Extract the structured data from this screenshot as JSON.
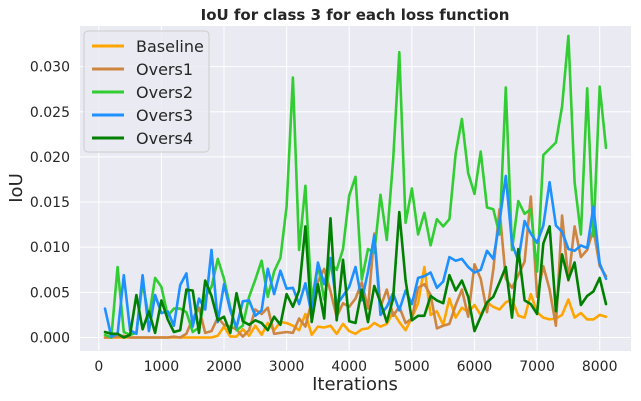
{
  "chart_data": {
    "type": "line",
    "title": "IoU for class 3 for each loss function",
    "xlabel": "Iterations",
    "ylabel": "IoU",
    "xlim": [
      -300,
      8500
    ],
    "ylim": [
      -0.0015,
      0.0345
    ],
    "xticks": [
      0,
      1000,
      2000,
      3000,
      4000,
      5000,
      6000,
      7000,
      8000
    ],
    "xtick_labels": [
      "0",
      "1000",
      "2000",
      "3000",
      "4000",
      "5000",
      "6000",
      "7000",
      "8000"
    ],
    "yticks": [
      0,
      0.005,
      0.01,
      0.015,
      0.02,
      0.025,
      0.03
    ],
    "ytick_labels": [
      "0.000",
      "0.005",
      "0.010",
      "0.015",
      "0.020",
      "0.025",
      "0.030"
    ],
    "grid": true,
    "legend_position": "top-left",
    "background": "#eaeaf2",
    "x": [
      100,
      200,
      300,
      400,
      500,
      600,
      700,
      800,
      900,
      1000,
      1100,
      1200,
      1300,
      1400,
      1500,
      1600,
      1700,
      1800,
      1900,
      2000,
      2100,
      2200,
      2300,
      2400,
      2500,
      2600,
      2700,
      2800,
      2900,
      3000,
      3100,
      3200,
      3300,
      3400,
      3500,
      3600,
      3700,
      3800,
      3900,
      4000,
      4100,
      4200,
      4300,
      4400,
      4500,
      4600,
      4700,
      4800,
      4900,
      5000,
      5100,
      5200,
      5300,
      5400,
      5500,
      5600,
      5700,
      5800,
      5900,
      6000,
      6100,
      6200,
      6300,
      6400,
      6500,
      6600,
      6700,
      6800,
      6900,
      7000,
      7100,
      7200,
      7300,
      7400,
      7500,
      7600,
      7700,
      7800,
      7900,
      8000,
      8100
    ],
    "series": [
      {
        "name": "Baseline",
        "color": "#ffa500",
        "values": [
          0,
          0,
          0,
          0,
          0,
          0,
          0,
          0,
          0,
          0,
          0,
          0,
          0,
          0,
          0,
          0,
          0,
          0,
          0.0002,
          0.0012,
          0.0001,
          0.0001,
          0.0009,
          0.0002,
          0.0013,
          0.0003,
          0.0016,
          0.0008,
          0.0017,
          0.0016,
          0.0013,
          0.0008,
          0.0026,
          0.0003,
          0.0012,
          0.0011,
          0.0013,
          0.0004,
          0.0015,
          0.0007,
          0.0004,
          0.0009,
          0.001,
          0.0016,
          0.0012,
          0.0015,
          0.0028,
          0.0017,
          0.0008,
          0.0022,
          0.0038,
          0.0078,
          0.0025,
          0.0029,
          0.0014,
          0.0043,
          0.0022,
          0.0033,
          0.0028,
          0.0036,
          0.0025,
          0.0039,
          0.0034,
          0.0031,
          0.0039,
          0.0042,
          0.0024,
          0.0022,
          0.0048,
          0.0028,
          0.0022,
          0.002,
          0.0021,
          0.0025,
          0.0042,
          0.0022,
          0.0027,
          0.002,
          0.002,
          0.0025,
          0.0023
        ]
      },
      {
        "name": "Overs1",
        "color": "#cd853f",
        "values": [
          0,
          0,
          0.0001,
          0.0002,
          0,
          0,
          0,
          0,
          0,
          0,
          0,
          0.0001,
          0,
          0.0004,
          0.0021,
          0.0033,
          0.0005,
          0.0007,
          0.0022,
          0.0014,
          0.0012,
          0.0009,
          0.0001,
          0.0008,
          0.0031,
          0.0026,
          0.0033,
          0.0004,
          0.0005,
          0.0006,
          0.0005,
          0.0021,
          0.0012,
          0.004,
          0.0062,
          0.0076,
          0.0051,
          0.0023,
          0.0038,
          0.0034,
          0.0043,
          0.0061,
          0.0032,
          0.0115,
          0.0034,
          0.0053,
          0.0024,
          0.0034,
          0.0016,
          0.0021,
          0.0055,
          0.0059,
          0.0047,
          0.001,
          0.0013,
          0.0015,
          0.0036,
          0.0053,
          0.0023,
          0.0081,
          0.0065,
          0.0028,
          0.0075,
          0.0142,
          0.0065,
          0.0055,
          0.0069,
          0.0084,
          0.0156,
          0.0045,
          0.0079,
          0.0053,
          0.0013,
          0.0135,
          0.0063,
          0.0123,
          0.0089,
          0.0097,
          0.012,
          0.0079,
          0.0068
        ]
      },
      {
        "name": "Overs2",
        "color": "#32cd32",
        "values": [
          0.0003,
          0,
          0.0078,
          0.0006,
          0.0003,
          0.0005,
          0.0061,
          0.0022,
          0.0066,
          0.0056,
          0.0024,
          0.0032,
          0.0032,
          0.0028,
          0.0006,
          0.0011,
          0.0045,
          0.0056,
          0.0087,
          0.0065,
          0.0033,
          0.0008,
          0.0013,
          0.0045,
          0.0064,
          0.0085,
          0.0045,
          0.0073,
          0.0088,
          0.0145,
          0.0288,
          0.0097,
          0.0168,
          0.004,
          0.0081,
          0.0042,
          0.0082,
          0.0075,
          0.0098,
          0.0157,
          0.0178,
          0.0064,
          0.0098,
          0.0094,
          0.0158,
          0.0108,
          0.0196,
          0.0316,
          0.0127,
          0.0165,
          0.0114,
          0.0138,
          0.0102,
          0.0131,
          0.0123,
          0.0131,
          0.0204,
          0.0242,
          0.0182,
          0.0159,
          0.0206,
          0.0144,
          0.0142,
          0.0114,
          0.0277,
          0.0097,
          0.0151,
          0.0137,
          0.0142,
          0.0073,
          0.0202,
          0.0209,
          0.0216,
          0.0256,
          0.0334,
          0.0172,
          0.0114,
          0.0276,
          0.0112,
          0.0278,
          0.021
        ]
      },
      {
        "name": "Overs3",
        "color": "#1e90ff",
        "values": [
          0.0032,
          0.0001,
          0.0004,
          0.0069,
          0.0008,
          0.0004,
          0.0069,
          0.0007,
          0.0047,
          0.0027,
          0.0029,
          0.0013,
          0.0058,
          0.0071,
          0.0012,
          0.0043,
          0.0031,
          0.0097,
          0.0017,
          0.0059,
          0.003,
          0.0011,
          0.004,
          0.0041,
          0.0024,
          0.003,
          0.0076,
          0.0048,
          0.0074,
          0.0054,
          0.0055,
          0.0037,
          0.006,
          0.0025,
          0.0083,
          0.0059,
          0.0088,
          0.0036,
          0.0046,
          0.0056,
          0.0078,
          0.0041,
          0.0073,
          0.0113,
          0.0025,
          0.0034,
          0.0049,
          0.003,
          0.0052,
          0.0037,
          0.0066,
          0.0068,
          0.0072,
          0.0055,
          0.0062,
          0.0089,
          0.0085,
          0.0087,
          0.0078,
          0.0072,
          0.0075,
          0.0096,
          0.0087,
          0.0128,
          0.0179,
          0.0104,
          0.0085,
          0.0129,
          0.0115,
          0.0105,
          0.0124,
          0.0172,
          0.0124,
          0.0117,
          0.0098,
          0.0096,
          0.0102,
          0.0099,
          0.0145,
          0.0082,
          0.0065
        ]
      },
      {
        "name": "Overs4",
        "color": "#008000",
        "values": [
          0.0006,
          0.0004,
          0.0004,
          0,
          0.0003,
          0.0047,
          0.0009,
          0.0029,
          0.0005,
          0.0041,
          0.002,
          0.0006,
          0.0008,
          0.0053,
          0.0052,
          0.0005,
          0.0063,
          0.0046,
          0.0019,
          0.0023,
          0.0005,
          0.0049,
          0.0018,
          0.0014,
          0.0019,
          0.0016,
          0.0008,
          0.0023,
          0.0014,
          0.0048,
          0.0034,
          0.0052,
          0.0123,
          0.0017,
          0.0059,
          0.0021,
          0.0132,
          0.0019,
          0.0086,
          0.0018,
          0.0016,
          0.0053,
          0.0017,
          0.0057,
          0.0039,
          0.0017,
          0.0043,
          0.0139,
          0.0063,
          0.0019,
          0.0024,
          0.0024,
          0.0046,
          0.0041,
          0.0038,
          0.0069,
          0.0052,
          0.0063,
          0.0045,
          0.0007,
          0.0023,
          0.0039,
          0.0045,
          0.0061,
          0.0078,
          0.0022,
          0.0098,
          0.0041,
          0.0037,
          0.0026,
          0.0104,
          0.0123,
          0.0029,
          0.0092,
          0.0064,
          0.0083,
          0.0036,
          0.0046,
          0.0051,
          0.0066,
          0.0037
        ]
      }
    ]
  }
}
